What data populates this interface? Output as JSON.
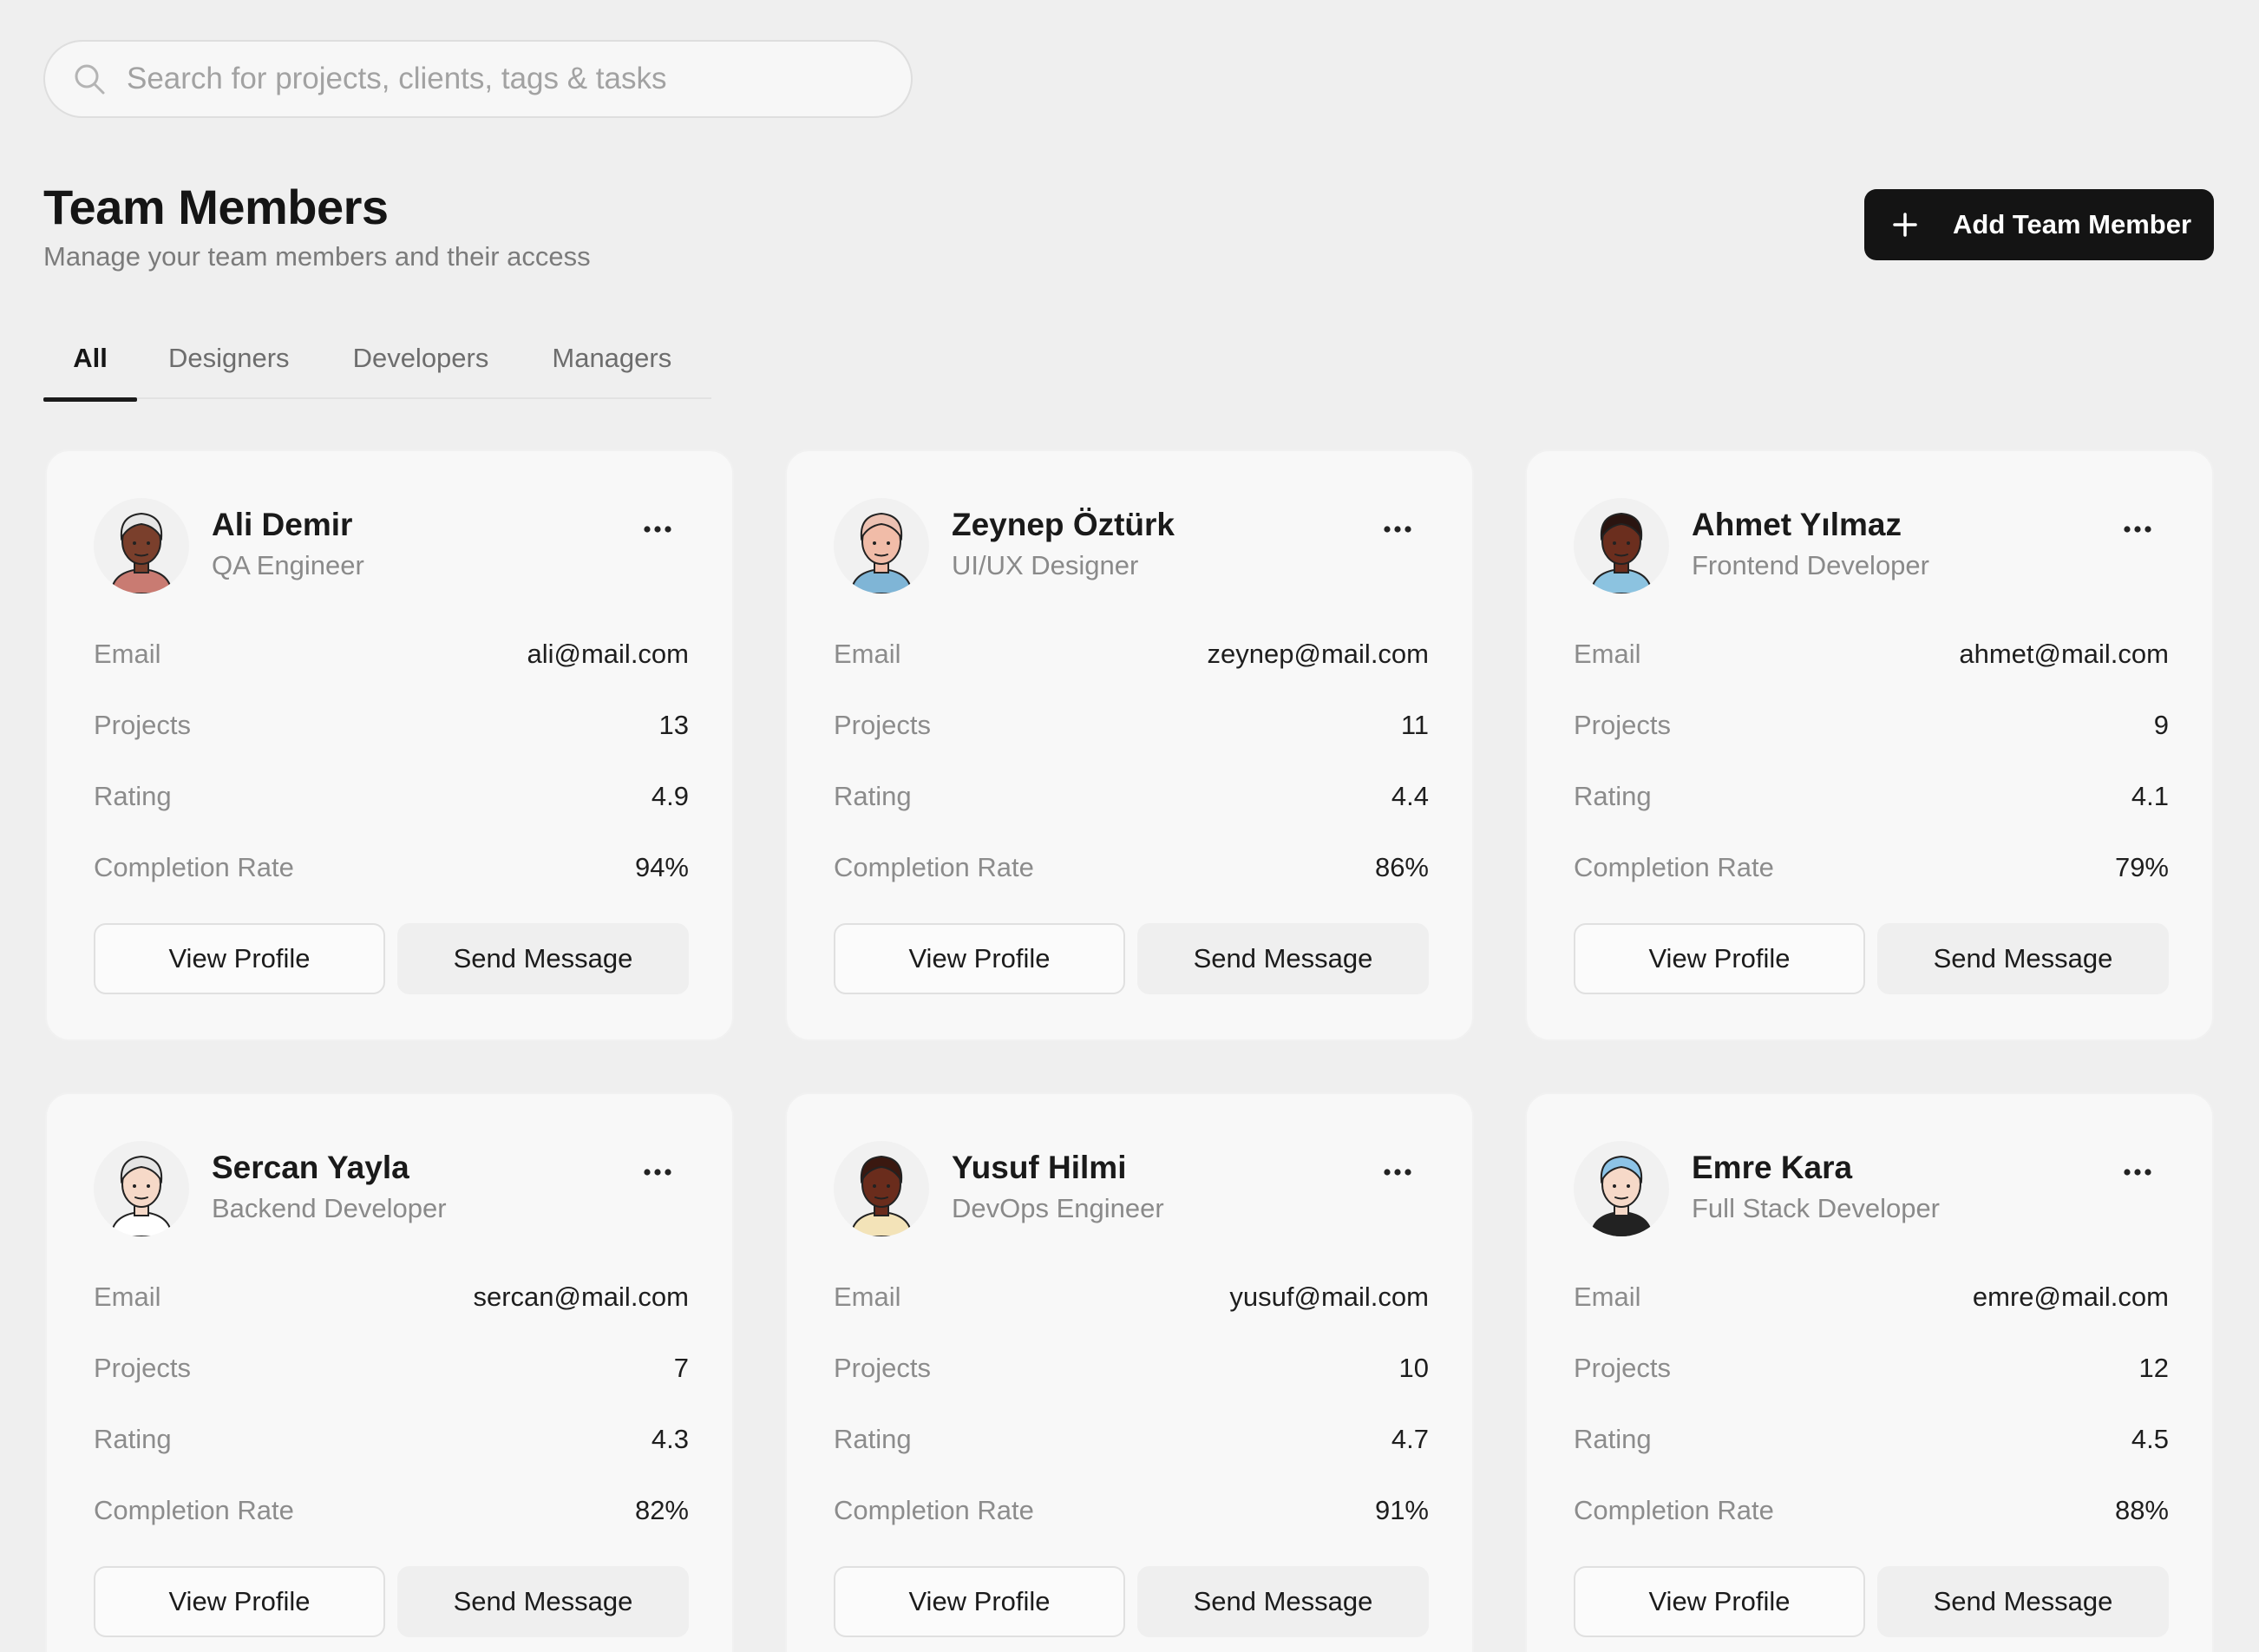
{
  "search": {
    "placeholder": "Search for projects, clients, tags & tasks"
  },
  "header": {
    "title": "Team Members",
    "subtitle": "Manage your team members and their access",
    "add_button_label": "Add Team Member"
  },
  "tabs": [
    {
      "label": "All",
      "active": true
    },
    {
      "label": "Designers",
      "active": false
    },
    {
      "label": "Developers",
      "active": false
    },
    {
      "label": "Managers",
      "active": false
    }
  ],
  "labels": {
    "email": "Email",
    "projects": "Projects",
    "rating": "Rating",
    "completion_rate": "Completion Rate",
    "view_profile": "View Profile",
    "send_message": "Send Message"
  },
  "members": [
    {
      "name": "Ali Demir",
      "role": "QA Engineer",
      "email": "ali@mail.com",
      "projects": "13",
      "rating": "4.9",
      "completion_rate": "94%",
      "skin": "#7a3f2c",
      "hair": "#e6e6e6",
      "shirt": "#c97b72"
    },
    {
      "name": "Zeynep Öztürk",
      "role": "UI/UX Designer",
      "email": "zeynep@mail.com",
      "projects": "11",
      "rating": "4.4",
      "completion_rate": "86%",
      "skin": "#f1bca8",
      "hair": "#ecc1b2",
      "shirt": "#7fb5d6"
    },
    {
      "name": "Ahmet Yılmaz",
      "role": "Frontend Developer",
      "email": "ahmet@mail.com",
      "projects": "9",
      "rating": "4.1",
      "completion_rate": "79%",
      "skin": "#6b2e1e",
      "hair": "#2a1410",
      "shirt": "#8cc3e0"
    },
    {
      "name": "Sercan Yayla",
      "role": "Backend Developer",
      "email": "sercan@mail.com",
      "projects": "7",
      "rating": "4.3",
      "completion_rate": "82%",
      "skin": "#f6d9c8",
      "hair": "#e4e4e4",
      "shirt": "#ffffff"
    },
    {
      "name": "Yusuf Hilmi",
      "role": "DevOps Engineer",
      "email": "yusuf@mail.com",
      "projects": "10",
      "rating": "4.7",
      "completion_rate": "91%",
      "skin": "#6a2c1c",
      "hair": "#3a1810",
      "shirt": "#f3e3b8"
    },
    {
      "name": "Emre Kara",
      "role": "Full Stack Developer",
      "email": "emre@mail.com",
      "projects": "12",
      "rating": "4.5",
      "completion_rate": "88%",
      "skin": "#f6d9c8",
      "hair": "#8dc3e6",
      "shirt": "#222222"
    }
  ]
}
